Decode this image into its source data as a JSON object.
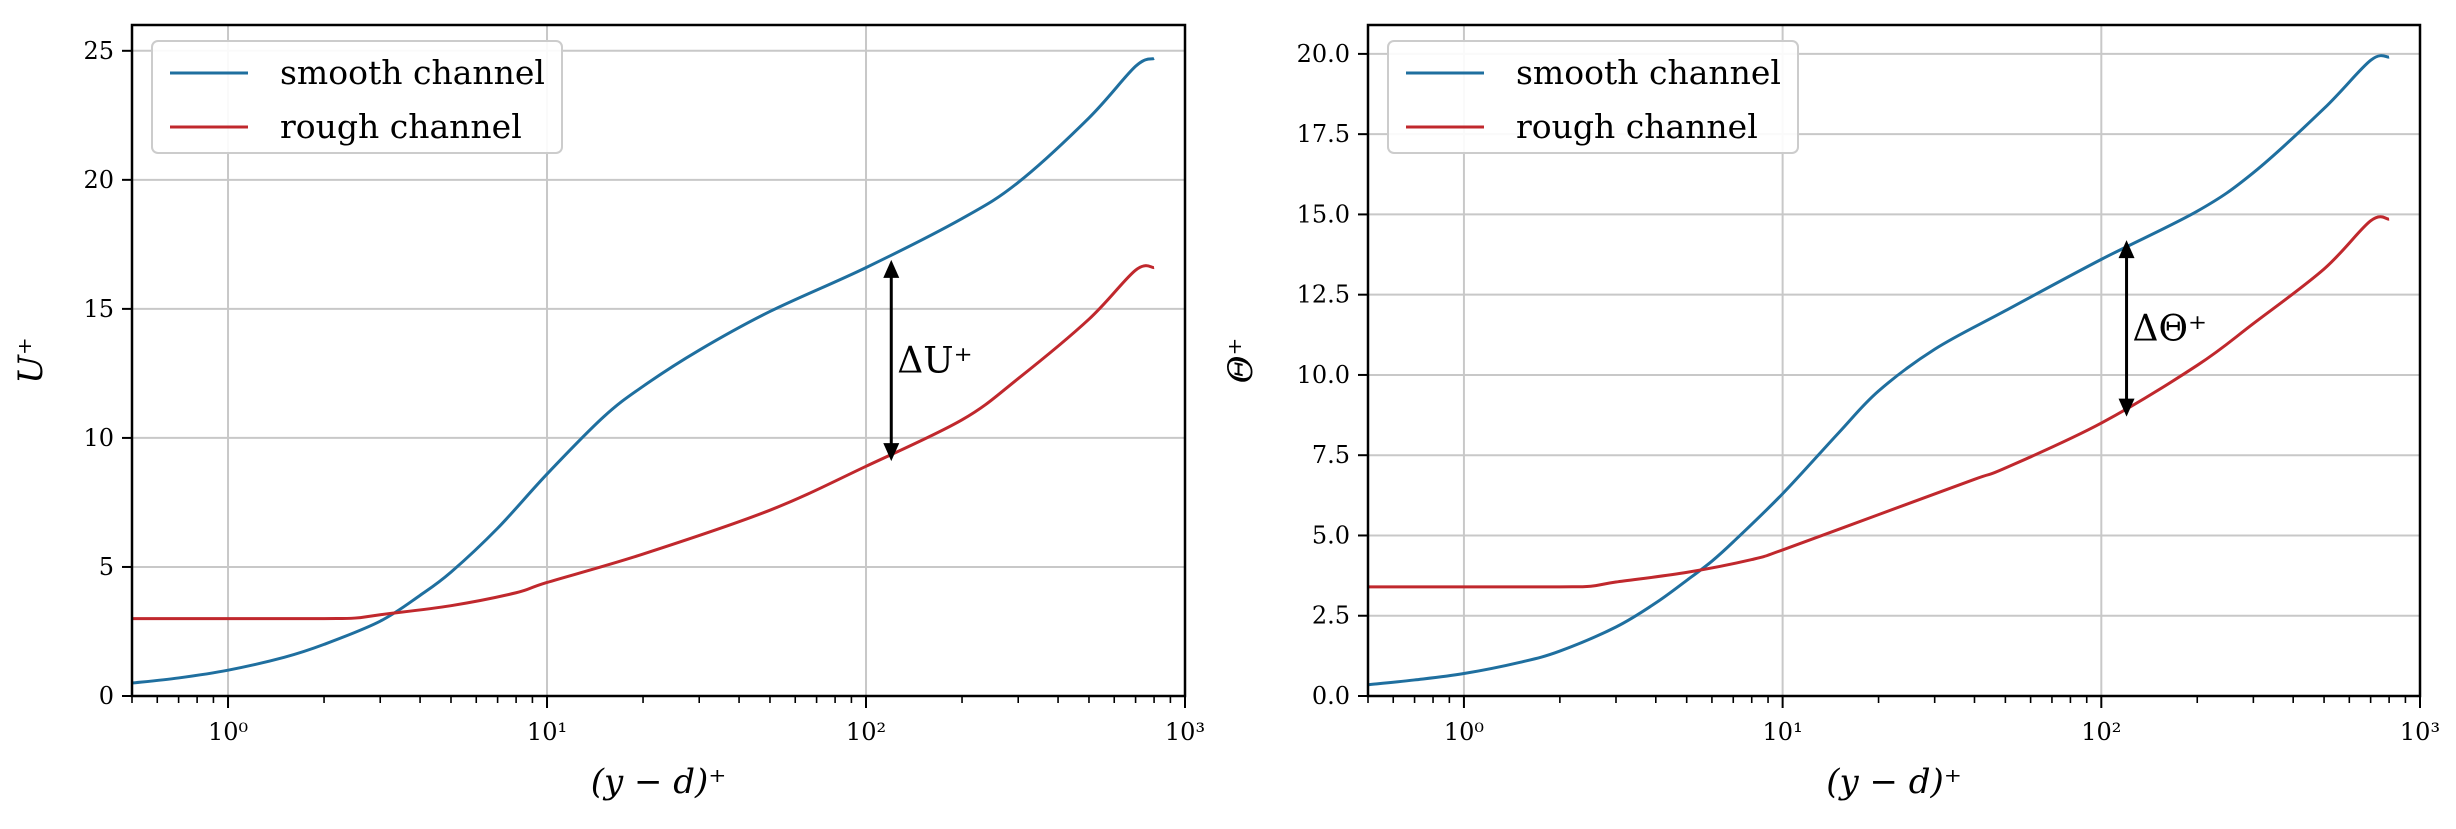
{
  "chart_data": [
    {
      "type": "line",
      "panel": "left",
      "xlabel": "(y − d)⁺",
      "ylabel": "U⁺",
      "xscale": "log",
      "xlim": [
        0.5,
        1000
      ],
      "ylim": [
        0,
        26
      ],
      "xticks": [
        1,
        10,
        100,
        1000
      ],
      "xtick_labels": [
        "10⁰",
        "10¹",
        "10²",
        "10³"
      ],
      "yticks": [
        0,
        5,
        10,
        15,
        20,
        25
      ],
      "ytick_labels": [
        "0",
        "5",
        "10",
        "15",
        "20",
        "25"
      ],
      "grid": true,
      "legend_position": "top-left",
      "series": [
        {
          "name": "smooth channel",
          "color": "#1f6f9f",
          "x": [
            0.5,
            0.7,
            1,
            1.5,
            2,
            3,
            4,
            5,
            7,
            10,
            15,
            20,
            30,
            50,
            100,
            200,
            300,
            500,
            700,
            800
          ],
          "y": [
            0.5,
            0.7,
            1.0,
            1.5,
            2.0,
            2.9,
            3.9,
            4.8,
            6.5,
            8.6,
            10.8,
            12.0,
            13.4,
            14.9,
            16.6,
            18.5,
            19.9,
            22.4,
            24.4,
            24.7
          ]
        },
        {
          "name": "rough channel",
          "color": "#c0282d",
          "x": [
            0.5,
            1,
            2,
            2.5,
            3,
            5,
            8,
            10,
            20,
            50,
            100,
            200,
            300,
            500,
            700,
            800
          ],
          "y": [
            3.0,
            3.0,
            3.0,
            3.02,
            3.15,
            3.5,
            4.0,
            4.4,
            5.5,
            7.2,
            8.9,
            10.7,
            12.3,
            14.6,
            16.5,
            16.6
          ]
        }
      ],
      "annotations": [
        {
          "text": "ΔU⁺",
          "x": 120,
          "y_top": 16.9,
          "y_bottom": 9.1
        }
      ]
    },
    {
      "type": "line",
      "panel": "right",
      "xlabel": "(y − d)⁺",
      "ylabel": "Θ⁺",
      "xscale": "log",
      "xlim": [
        0.5,
        1000
      ],
      "ylim": [
        0,
        20.9
      ],
      "xticks": [
        1,
        10,
        100,
        1000
      ],
      "xtick_labels": [
        "10⁰",
        "10¹",
        "10²",
        "10³"
      ],
      "yticks": [
        0,
        2.5,
        5,
        7.5,
        10,
        12.5,
        15,
        17.5,
        20
      ],
      "ytick_labels": [
        "0.0",
        "2.5",
        "5.0",
        "7.5",
        "10.0",
        "12.5",
        "15.0",
        "17.5",
        "20.0"
      ],
      "grid": true,
      "legend_position": "top-left",
      "series": [
        {
          "name": "smooth channel",
          "color": "#1f6f9f",
          "x": [
            0.5,
            0.7,
            1,
            1.5,
            2,
            3,
            4,
            5,
            6,
            7,
            10,
            15,
            20,
            30,
            50,
            100,
            200,
            300,
            500,
            700,
            800
          ],
          "y": [
            0.35,
            0.5,
            0.7,
            1.05,
            1.4,
            2.15,
            2.9,
            3.6,
            4.2,
            4.8,
            6.3,
            8.2,
            9.5,
            10.8,
            12.0,
            13.6,
            15.1,
            16.3,
            18.3,
            19.8,
            19.9
          ]
        },
        {
          "name": "rough channel",
          "color": "#c0282d",
          "x": [
            0.5,
            1,
            2,
            2.5,
            3,
            5,
            8,
            10,
            20,
            40,
            50,
            100,
            200,
            300,
            500,
            700,
            800
          ],
          "y": [
            3.4,
            3.4,
            3.4,
            3.42,
            3.55,
            3.85,
            4.25,
            4.55,
            5.65,
            6.75,
            7.1,
            8.5,
            10.3,
            11.6,
            13.3,
            14.8,
            14.85
          ]
        }
      ],
      "annotations": [
        {
          "text": "ΔΘ⁺",
          "x": 120,
          "y_top": 14.2,
          "y_bottom": 8.7
        }
      ]
    }
  ]
}
